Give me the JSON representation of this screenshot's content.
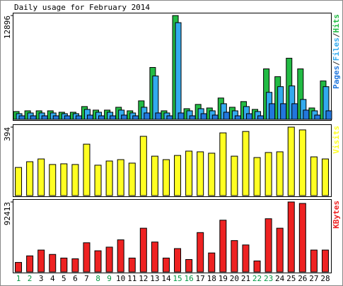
{
  "chart_data": {
    "type": "bar",
    "title": "Daily usage for February 2014",
    "categories": [
      "1",
      "2",
      "3",
      "4",
      "5",
      "6",
      "7",
      "8",
      "9",
      "10",
      "11",
      "12",
      "13",
      "14",
      "15",
      "16",
      "17",
      "18",
      "19",
      "20",
      "21",
      "22",
      "23",
      "24",
      "25",
      "26",
      "27",
      "28"
    ],
    "category_colors": [
      "#009944",
      "#009944",
      "#000000",
      "#000000",
      "#000000",
      "#000000",
      "#000000",
      "#009944",
      "#009944",
      "#000000",
      "#000000",
      "#000000",
      "#000000",
      "#000000",
      "#009944",
      "#009944",
      "#000000",
      "#000000",
      "#000000",
      "#000000",
      "#000000",
      "#009944",
      "#009944",
      "#000000",
      "#000000",
      "#000000",
      "#000000",
      "#000000"
    ],
    "legend_separator": "/",
    "panels": [
      {
        "ylim": [
          0,
          12896
        ],
        "yticks": [
          12896
        ],
        "series": [
          {
            "name": "Pages",
            "color": "#2277dd",
            "values": [
              442,
              442,
              442,
              442,
              442,
              442,
              530,
              442,
              442,
              530,
              442,
              795,
              795,
              442,
              795,
              442,
              707,
              530,
              883,
              442,
              707,
              442,
              1943,
              1943,
              1943,
              1148,
              530,
              1060
            ]
          },
          {
            "name": "Files",
            "color": "#33aaee",
            "values": [
              707,
              795,
              795,
              795,
              707,
              707,
              1237,
              883,
              883,
              1148,
              795,
              1502,
              5388,
              795,
              12013,
              1060,
              1325,
              1060,
              1943,
              1060,
              1590,
              972,
              3357,
              4063,
              4152,
              2473,
              1060,
              4063
            ]
          },
          {
            "name": "Hits",
            "color": "#22bb44",
            "values": [
              972,
              1060,
              1060,
              1060,
              883,
              883,
              1590,
              1148,
              1148,
              1502,
              1060,
              2297,
              6448,
              1060,
              12896,
              1325,
              1855,
              1413,
              2650,
              1502,
              2208,
              1237,
              6271,
              5300,
              7596,
              6271,
              1413,
              4770
            ]
          }
        ]
      },
      {
        "ylim": [
          0,
          394
        ],
        "yticks": [
          394
        ],
        "series": [
          {
            "name": "Visits",
            "color": "#ffff22",
            "values": [
              162,
              195,
              211,
              179,
              183,
              179,
              296,
              175,
              199,
              207,
              187,
              341,
              227,
              207,
              231,
              256,
              252,
              244,
              361,
              227,
              369,
              219,
              248,
              252,
              394,
              378,
              223,
              211
            ]
          }
        ]
      },
      {
        "ylim": [
          0,
          92413
        ],
        "yticks": [
          92413
        ],
        "series": [
          {
            "name": "KBytes",
            "color": "#ee2222",
            "values": [
              12514,
              21177,
              28878,
              23102,
              18289,
              17327,
              38504,
              27915,
              32728,
              42354,
              18289,
              57756,
              39467,
              18289,
              30803,
              16364,
              51980,
              25028,
              68345,
              41392,
              35616,
              14439,
              70270,
              57756,
              92413,
              90484,
              28878,
              28878
            ]
          }
        ]
      }
    ]
  }
}
